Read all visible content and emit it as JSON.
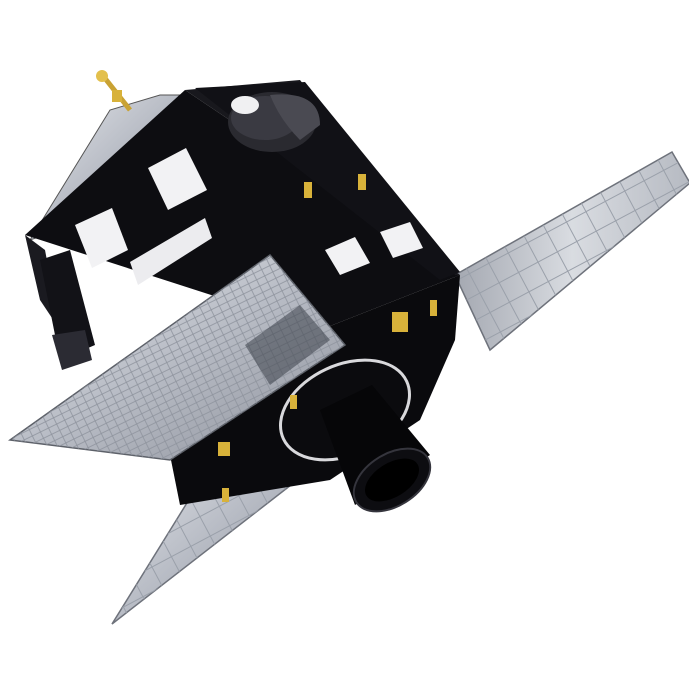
{
  "image": {
    "subject": "satellite",
    "background_color": "#ffffff",
    "colors": {
      "body": "#0c0c0f",
      "body_highlight": "#2a2a30",
      "panel_silver": "#c9ccd3",
      "panel_shadow": "#7d8089",
      "cell_line": "#9ea3ad",
      "radiator": "#f2f2f4",
      "gold": "#d8b23a",
      "nozzle": "#050507"
    }
  }
}
